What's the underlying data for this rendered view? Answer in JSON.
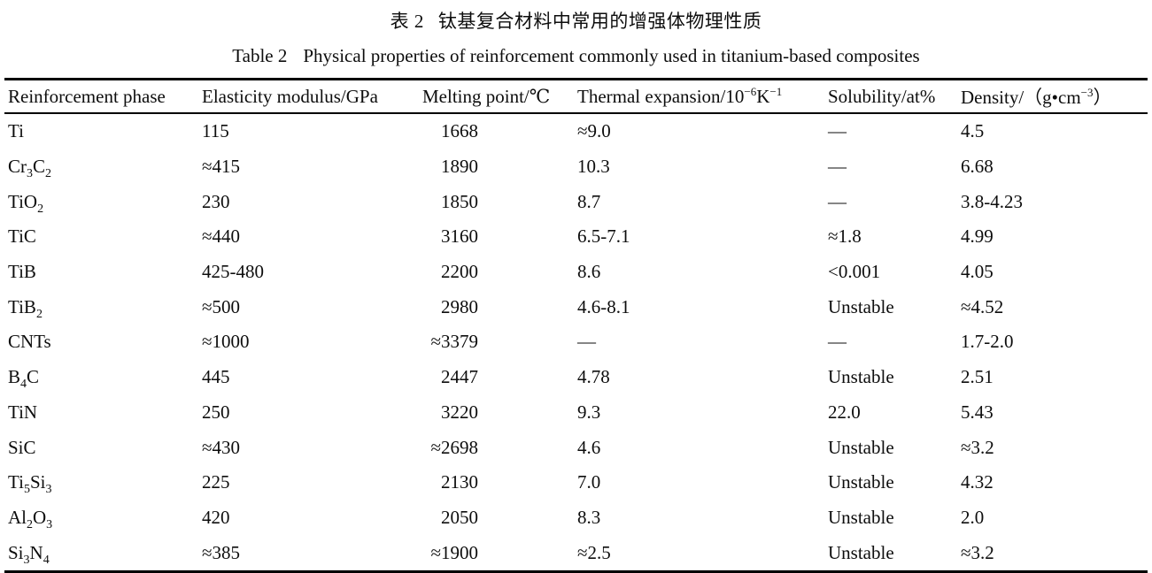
{
  "header": {
    "title_zh": {
      "label": "表 2",
      "text": "钛基复合材料中常用的增强体物理性质"
    },
    "title_en": {
      "label": "Table 2",
      "text": "Physical properties of reinforcement commonly used in titanium-based composites"
    }
  },
  "table": {
    "columns": [
      "Reinforcement phase",
      "Elasticity modulus/GPa",
      "Melting point/℃",
      "Thermal expansion/10⁻⁶K⁻¹",
      "Solubility/at%",
      "Density/（g•cm⁻³）"
    ],
    "rows": [
      [
        "Ti",
        "115",
        "1668",
        "≈9.0",
        "—",
        "4.5"
      ],
      [
        "Cr₃C₂",
        "≈415",
        "1890",
        "10.3",
        "—",
        "6.68"
      ],
      [
        "TiO₂",
        "230",
        "1850",
        "8.7",
        "—",
        "3.8-4.23"
      ],
      [
        "TiC",
        "≈440",
        "3160",
        "6.5-7.1",
        "≈1.8",
        "4.99"
      ],
      [
        "TiB",
        "425-480",
        "2200",
        "8.6",
        "<0.001",
        "4.05"
      ],
      [
        "TiB₂",
        "≈500",
        "2980",
        "4.6-8.1",
        "Unstable",
        "≈4.52"
      ],
      [
        "CNTs",
        "≈1000",
        "≈3379",
        "—",
        "—",
        "1.7-2.0"
      ],
      [
        "B₄C",
        "445",
        "2447",
        "4.78",
        "Unstable",
        "2.51"
      ],
      [
        "TiN",
        "250",
        "3220",
        "9.3",
        "22.0",
        "5.43"
      ],
      [
        "SiC",
        "≈430",
        "≈2698",
        "4.6",
        "Unstable",
        "≈3.2"
      ],
      [
        "Ti₅Si₃",
        "225",
        "2130",
        "7.0",
        "Unstable",
        "4.32"
      ],
      [
        "Al₂O₃",
        "420",
        "2050",
        "8.3",
        "Unstable",
        "2.0"
      ],
      [
        "Si₃N₄",
        "≈385",
        "≈1900",
        "≈2.5",
        "Unstable",
        "≈3.2"
      ]
    ]
  }
}
